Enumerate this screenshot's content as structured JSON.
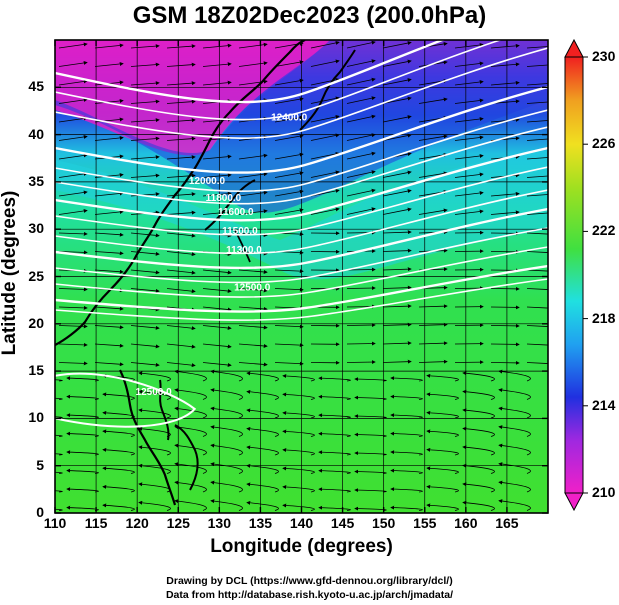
{
  "title": "GSM 18Z02Dec2023 (200.0hPa)",
  "xlabel": "Longitude (degrees)",
  "ylabel": "Latitude  (degrees)",
  "credits": [
    "Drawing by DCL (https://www.gfd-dennou.org/library/dcl/)",
    "Data from http://database.rish.kyoto-u.ac.jp/arch/jmadata/"
  ],
  "chart_data": {
    "type": "heatmap",
    "title": "GSM 18Z02Dec2023 (200.0hPa)",
    "xlabel": "Longitude (degrees)",
    "ylabel": "Latitude  (degrees)",
    "xlim": [
      110,
      170
    ],
    "ylim": [
      0,
      50
    ],
    "x_ticks": [
      "110",
      "115",
      "120",
      "125",
      "130",
      "135",
      "140",
      "145",
      "150",
      "155",
      "160",
      "165"
    ],
    "y_ticks": [
      "0",
      "5",
      "10",
      "15",
      "20",
      "25",
      "30",
      "35",
      "40",
      "45"
    ],
    "grid": true,
    "colorbar": {
      "min": 210,
      "max": 230,
      "tick_labels": [
        "210",
        "214",
        "218",
        "222",
        "226",
        "230"
      ],
      "colors": [
        "#f020c8",
        "#a028e0",
        "#2030e0",
        "#20a0f0",
        "#20e0e0",
        "#40e040",
        "#a0e020",
        "#f0e020",
        "#f0a020",
        "#f02020"
      ]
    },
    "contour_labels": [
      {
        "text": "12400.0",
        "lon": 138.5,
        "lat": 41.5
      },
      {
        "text": "12000.0",
        "lon": 128.5,
        "lat": 34.8
      },
      {
        "text": "11800.0",
        "lon": 130.5,
        "lat": 33.0
      },
      {
        "text": "11600.0",
        "lon": 132.0,
        "lat": 31.5
      },
      {
        "text": "11500.0",
        "lon": 132.5,
        "lat": 29.5
      },
      {
        "text": "11300.0",
        "lon": 133.0,
        "lat": 27.5
      },
      {
        "text": "12500.0",
        "lon": 134.0,
        "lat": 23.5
      },
      {
        "text": "12500.0",
        "lon": 122.0,
        "lat": 12.5
      }
    ]
  }
}
